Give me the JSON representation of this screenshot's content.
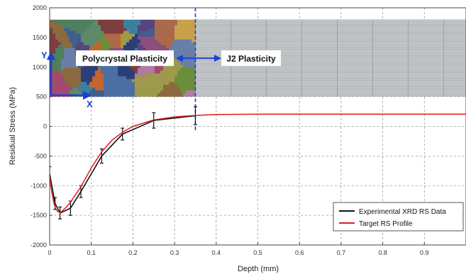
{
  "chart_data": {
    "type": "line",
    "xlabel": "Depth (mm)",
    "ylabel": "Residual Stress (MPa)",
    "xlim": [
      0,
      1.0
    ],
    "ylim": [
      -2000,
      2000
    ],
    "x_ticks": [
      0,
      0.1,
      0.2,
      0.3,
      0.4,
      0.5,
      0.6,
      0.7,
      0.8,
      0.9
    ],
    "y_ticks": [
      -2000,
      -1500,
      -1000,
      -500,
      0,
      500,
      1000,
      1500,
      2000
    ],
    "x_tick_labels": [
      "0",
      "0.1",
      "0.2",
      "0.3",
      "0.4",
      "0.5",
      "0.6",
      "0.7",
      "0.8",
      "0.9"
    ],
    "y_tick_labels": [
      "-2000",
      "-1500",
      "-1000",
      "-500",
      "0",
      "500",
      "1000",
      "1500",
      "2000"
    ],
    "grid": true,
    "legend_position": "bottom-right",
    "series": [
      {
        "name": "Experimental XRD RS Data",
        "color": "#111111",
        "style": "line-with-error-bars",
        "x": [
          0.0,
          0.013,
          0.025,
          0.05,
          0.075,
          0.125,
          0.175,
          0.25,
          0.35
        ],
        "y": [
          -800,
          -1300,
          -1460,
          -1380,
          -1100,
          -500,
          -130,
          100,
          180
        ],
        "error": [
          120,
          100,
          100,
          120,
          100,
          120,
          100,
          130,
          150
        ]
      },
      {
        "name": "Target RS Profile",
        "color": "#e11b1b",
        "style": "line",
        "x": [
          0.0,
          0.005,
          0.01,
          0.015,
          0.02,
          0.025,
          0.03,
          0.04,
          0.05,
          0.075,
          0.1,
          0.125,
          0.15,
          0.175,
          0.2,
          0.25,
          0.3,
          0.35,
          0.4,
          0.5,
          0.6,
          0.7,
          0.8,
          0.9,
          1.0
        ],
        "y": [
          -850,
          -1100,
          -1290,
          -1400,
          -1440,
          -1450,
          -1430,
          -1360,
          -1280,
          -1020,
          -700,
          -430,
          -230,
          -100,
          0,
          110,
          160,
          185,
          200,
          205,
          205,
          205,
          205,
          205,
          205
        ]
      }
    ],
    "inset": {
      "region_label": "Polycrystal Plasticity",
      "far_region_label": "J2 Plasticity",
      "x_axis_letter": "X",
      "y_axis_letter": "Y",
      "boundary_depth": 0.35,
      "y_range": [
        500,
        1800
      ],
      "grain_colors": [
        "#2a3f7a",
        "#8a6a3e",
        "#6b8e3a",
        "#a24a6e",
        "#3d7f9e",
        "#c2662e",
        "#59457e",
        "#9e9a4b",
        "#3f5f8c",
        "#7d3e3e",
        "#4f7f5f",
        "#b07ba0",
        "#6a7fa8",
        "#c9a04a",
        "#4c6fa2",
        "#8c4f7d",
        "#5d8a6a",
        "#aa6a4a"
      ],
      "mesh_color": "#9ea2a6"
    }
  }
}
